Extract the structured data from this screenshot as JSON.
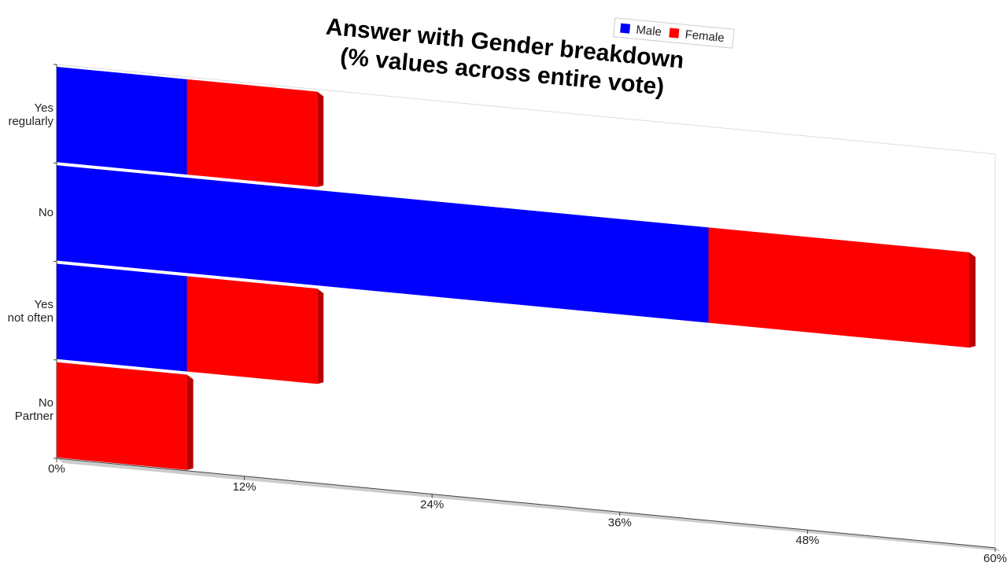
{
  "chart_data": {
    "type": "bar",
    "orientation": "horizontal",
    "stacked": true,
    "title": "Answer with Gender breakdown\n(% values across entire vote)",
    "categories": [
      "Yes\nregularly",
      "No",
      "Yes\nnot often",
      "No\nPartner"
    ],
    "series": [
      {
        "name": "Male",
        "color": "#0000ff",
        "values": [
          8.33,
          41.67,
          8.33,
          0
        ]
      },
      {
        "name": "Female",
        "color": "#ff0000",
        "values": [
          8.33,
          16.67,
          8.33,
          8.33
        ]
      }
    ],
    "xlim": [
      0,
      60
    ],
    "xticks": [
      {
        "value": 0,
        "label": "0%"
      },
      {
        "value": 12,
        "label": "12%"
      },
      {
        "value": 24,
        "label": "24%"
      },
      {
        "value": 36,
        "label": "36%"
      },
      {
        "value": 48,
        "label": "48%"
      },
      {
        "value": 60,
        "label": "60%"
      }
    ],
    "legend": "top"
  }
}
